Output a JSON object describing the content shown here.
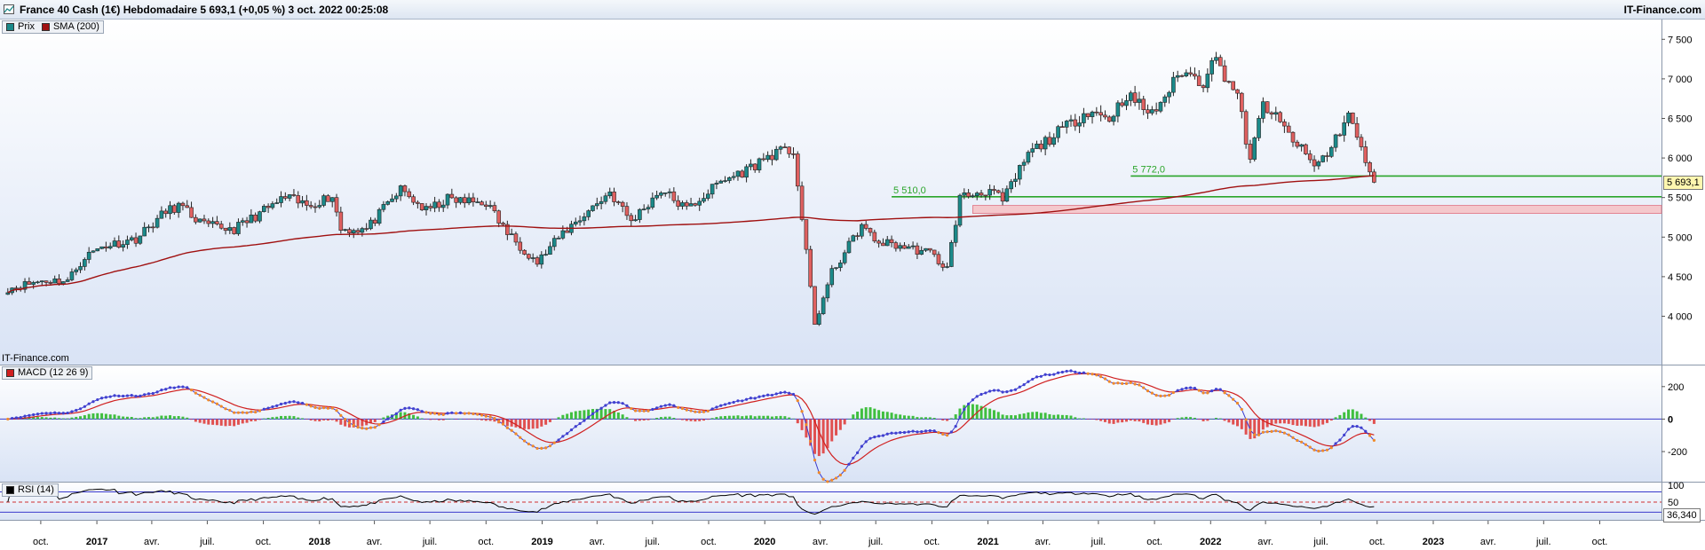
{
  "window": {
    "title": "France 40 Cash (1€) Hebdomadaire 5 693,1 (+0,05 %) 3 oct. 2022 00:25:08",
    "brand": "IT-Finance.com",
    "watermark": "IT-Finance.com"
  },
  "legends": {
    "price": {
      "label": "Prix",
      "color": "#1b8a8a"
    },
    "sma": {
      "label": "SMA (200)",
      "color": "#a01010"
    },
    "macd": {
      "label": "MACD (12 26 9)",
      "color": "#d02020"
    },
    "rsi": {
      "label": "RSI (14)",
      "color": "#000000"
    }
  },
  "current_price_label": "5 693,1",
  "rsi_value_label": "36,340",
  "chart_data": [
    {
      "type": "candlestick",
      "title": "France 40 Cash (1€) Hebdomadaire",
      "frequency": "weekly",
      "y_ticks": [
        "7 500",
        "7 000",
        "6 500",
        "6 000",
        "5 500",
        "5 000",
        "4 500",
        "4 000"
      ],
      "y_tick_values": [
        7500,
        7000,
        6500,
        6000,
        5500,
        5000,
        4500,
        4000
      ],
      "ylim": [
        3400,
        7750
      ],
      "x_ticks": [
        "oct.",
        "2017",
        "avr.",
        "juil.",
        "oct.",
        "2018",
        "avr.",
        "juil.",
        "oct.",
        "2019",
        "avr.",
        "juil.",
        "oct.",
        "2020",
        "avr.",
        "juil.",
        "oct.",
        "2021",
        "avr.",
        "juil.",
        "oct.",
        "2022",
        "avr.",
        "juil.",
        "oct.",
        "2023",
        "avr.",
        "juil.",
        "oct."
      ],
      "x_tick_dates": [
        "2016-10-01",
        "2017-01-01",
        "2017-04-01",
        "2017-07-01",
        "2017-10-01",
        "2018-01-01",
        "2018-04-01",
        "2018-07-01",
        "2018-10-01",
        "2019-01-01",
        "2019-04-01",
        "2019-07-01",
        "2019-10-01",
        "2020-01-01",
        "2020-04-01",
        "2020-07-01",
        "2020-10-01",
        "2021-01-01",
        "2021-04-01",
        "2021-07-01",
        "2021-10-01",
        "2022-01-01",
        "2022-04-01",
        "2022-07-01",
        "2022-10-01",
        "2023-01-01",
        "2023-04-01",
        "2023-07-01",
        "2023-10-01"
      ],
      "x_range": [
        "2016-08-01",
        "2023-12-31"
      ],
      "anchors": [
        [
          "2016-08-08",
          4350
        ],
        [
          "2016-10-03",
          4450
        ],
        [
          "2016-11-14",
          4450
        ],
        [
          "2016-12-12",
          4750
        ],
        [
          "2017-01-09",
          4880
        ],
        [
          "2017-03-06",
          4980
        ],
        [
          "2017-04-24",
          5320
        ],
        [
          "2017-05-15",
          5400
        ],
        [
          "2017-06-26",
          5150
        ],
        [
          "2017-08-14",
          5100
        ],
        [
          "2017-09-25",
          5300
        ],
        [
          "2017-11-06",
          5500
        ],
        [
          "2017-12-11",
          5400
        ],
        [
          "2018-01-22",
          5520
        ],
        [
          "2018-02-05",
          5100
        ],
        [
          "2018-03-19",
          5100
        ],
        [
          "2018-05-14",
          5600
        ],
        [
          "2018-06-25",
          5330
        ],
        [
          "2018-07-30",
          5480
        ],
        [
          "2018-08-27",
          5450
        ],
        [
          "2018-10-01",
          5440
        ],
        [
          "2018-11-05",
          5050
        ],
        [
          "2018-12-24",
          4680
        ],
        [
          "2019-02-04",
          5050
        ],
        [
          "2019-04-22",
          5570
        ],
        [
          "2019-05-27",
          5200
        ],
        [
          "2019-07-15",
          5600
        ],
        [
          "2019-08-26",
          5350
        ],
        [
          "2019-10-21",
          5700
        ],
        [
          "2019-12-02",
          5850
        ],
        [
          "2020-01-13",
          6050
        ],
        [
          "2020-02-17",
          6100
        ],
        [
          "2020-03-16",
          4350
        ],
        [
          "2020-03-23",
          3900
        ],
        [
          "2020-04-20",
          4550
        ],
        [
          "2020-06-08",
          5150
        ],
        [
          "2020-06-29",
          4950
        ],
        [
          "2020-08-03",
          4900
        ],
        [
          "2020-09-28",
          4800
        ],
        [
          "2020-10-26",
          4600
        ],
        [
          "2020-11-16",
          5500
        ],
        [
          "2021-01-04",
          5600
        ],
        [
          "2021-01-25",
          5450
        ],
        [
          "2021-03-08",
          6050
        ],
        [
          "2021-05-10",
          6400
        ],
        [
          "2021-06-14",
          6600
        ],
        [
          "2021-07-19",
          6500
        ],
        [
          "2021-08-16",
          6800
        ],
        [
          "2021-09-27",
          6550
        ],
        [
          "2021-11-15",
          7100
        ],
        [
          "2021-12-20",
          6950
        ],
        [
          "2022-01-03",
          7300
        ],
        [
          "2022-02-14",
          6800
        ],
        [
          "2022-03-07",
          5950
        ],
        [
          "2022-03-28",
          6700
        ],
        [
          "2022-05-09",
          6300
        ],
        [
          "2022-06-20",
          5900
        ],
        [
          "2022-07-11",
          6050
        ],
        [
          "2022-08-15",
          6550
        ],
        [
          "2022-09-05",
          6100
        ],
        [
          "2022-09-26",
          5693
        ]
      ],
      "last_close": 5693.1,
      "change_pct": 0.05,
      "levels": [
        {
          "label": "5 772,0",
          "value": 5772,
          "from": "2021-08-23",
          "color": "#2aa52a"
        },
        {
          "label": "5 510,0",
          "value": 5510,
          "from": "2020-07-27",
          "color": "#2aa52a"
        }
      ],
      "zone": {
        "from": 5300,
        "to": 5400,
        "start": "2020-12-07",
        "color": "#f4c8cc"
      },
      "sma": {
        "name": "SMA (200)",
        "period": 200,
        "color": "#a01010"
      },
      "grid": false,
      "legend": "top-left"
    },
    {
      "type": "line",
      "title": "MACD (12 26 9)",
      "y_ticks": [
        "200",
        "0",
        "-200"
      ],
      "y_tick_values": [
        200,
        0,
        -200
      ],
      "ylim": [
        -380,
        330
      ],
      "series": [
        {
          "name": "MACD",
          "color": "#3a3acc",
          "marker": "circle"
        },
        {
          "name": "Signal",
          "color": "#d02020"
        },
        {
          "name": "Histogramme",
          "color_pos": "#3fbf3f",
          "color_neg": "#e05050",
          "type": "bar"
        }
      ]
    },
    {
      "type": "line",
      "title": "RSI (14)",
      "y_ticks": [
        "100",
        "50"
      ],
      "y_tick_values": [
        100,
        50
      ],
      "ylim": [
        0,
        105
      ],
      "reference_lines": [
        80,
        50,
        20
      ],
      "last_value": 36.34,
      "period": 14,
      "color": "#000000"
    }
  ]
}
